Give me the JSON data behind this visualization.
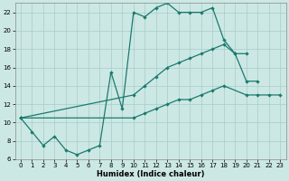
{
  "xlabel": "Humidex (Indice chaleur)",
  "bg_color": "#cce8e4",
  "line_color": "#1a7a6e",
  "grid_color": "#a8ccc8",
  "xlim": [
    -0.5,
    23.5
  ],
  "ylim": [
    6,
    23
  ],
  "xticks": [
    0,
    1,
    2,
    3,
    4,
    5,
    6,
    7,
    8,
    9,
    10,
    11,
    12,
    13,
    14,
    15,
    16,
    17,
    18,
    19,
    20,
    21,
    22,
    23
  ],
  "yticks": [
    6,
    8,
    10,
    12,
    14,
    16,
    18,
    20,
    22
  ],
  "line_main": {
    "x": [
      0,
      1,
      2,
      3,
      4,
      5,
      6,
      7,
      8,
      9,
      10,
      11,
      12,
      13,
      14,
      15,
      16,
      17,
      18,
      19,
      20,
      21
    ],
    "y": [
      10.5,
      9.0,
      7.5,
      8.5,
      7.0,
      6.5,
      7.0,
      7.5,
      15.5,
      11.5,
      22.0,
      21.5,
      22.5,
      23.0,
      22.0,
      22.0,
      22.0,
      22.5,
      19.0,
      17.5,
      14.5,
      14.5
    ]
  },
  "line_upper_diag": {
    "x": [
      0,
      10,
      11,
      12,
      13,
      14,
      15,
      16,
      17,
      18,
      19,
      20
    ],
    "y": [
      10.5,
      13.0,
      14.0,
      15.0,
      16.0,
      16.5,
      17.0,
      17.5,
      18.0,
      18.5,
      17.5,
      17.5
    ]
  },
  "line_lower_diag": {
    "x": [
      0,
      10,
      11,
      12,
      13,
      14,
      15,
      16,
      17,
      18,
      20,
      21,
      22,
      23
    ],
    "y": [
      10.5,
      10.5,
      11.0,
      11.5,
      12.0,
      12.5,
      12.5,
      13.0,
      13.5,
      14.0,
      13.0,
      13.0,
      13.0,
      13.0
    ]
  }
}
